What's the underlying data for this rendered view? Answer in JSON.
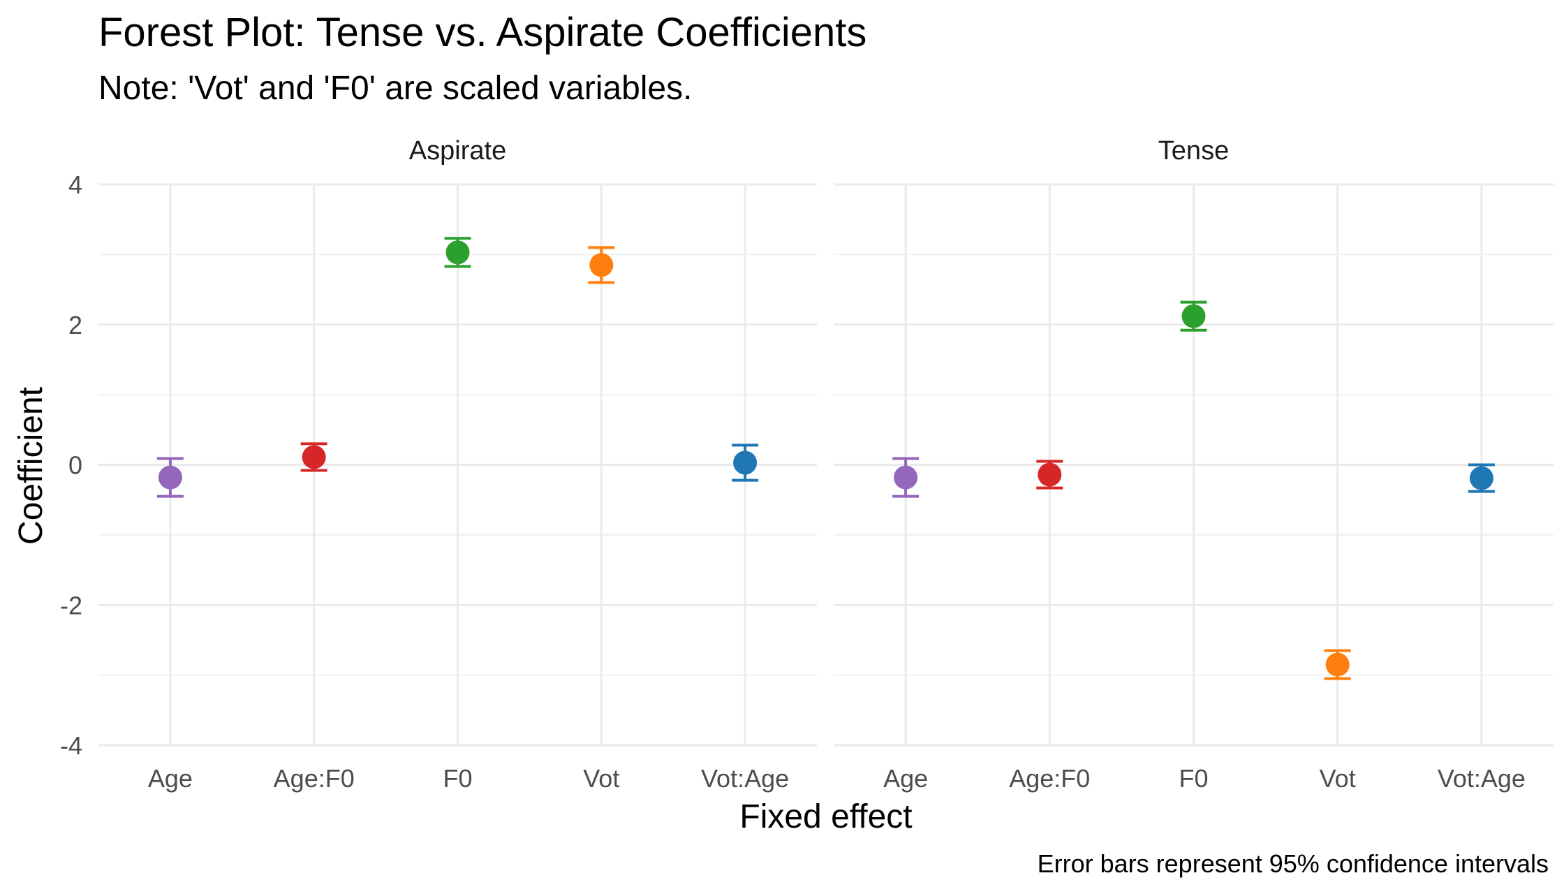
{
  "chart_data": {
    "type": "scatter",
    "title": "Forest Plot: Tense vs. Aspirate Coefficients",
    "subtitle": "Note: 'Vot' and 'F0' are scaled variables.",
    "xlabel": "Fixed effect",
    "ylabel": "Coefficient",
    "caption": "Error bars represent 95% confidence intervals",
    "ylim": [
      -4,
      4
    ],
    "yticks": [
      "4",
      "2",
      "0",
      "-2",
      "-4"
    ],
    "ytick_values": [
      4,
      2,
      0,
      -2,
      -4
    ],
    "grid": true,
    "categories": [
      "Age",
      "Age:F0",
      "F0",
      "Vot",
      "Vot:Age"
    ],
    "colors": {
      "Age": "#9467bd",
      "Age:F0": "#d62728",
      "F0": "#2ca02c",
      "Vot": "#ff7f0e",
      "Vot:Age": "#1f77b4"
    },
    "panels": [
      {
        "name": "Aspirate",
        "points": [
          {
            "x": "Age",
            "estimate": -0.18,
            "lower": -0.45,
            "upper": 0.09
          },
          {
            "x": "Age:F0",
            "estimate": 0.11,
            "lower": -0.08,
            "upper": 0.3
          },
          {
            "x": "F0",
            "estimate": 3.03,
            "lower": 2.83,
            "upper": 3.23
          },
          {
            "x": "Vot",
            "estimate": 2.85,
            "lower": 2.6,
            "upper": 3.1
          },
          {
            "x": "Vot:Age",
            "estimate": 0.03,
            "lower": -0.22,
            "upper": 0.28
          }
        ]
      },
      {
        "name": "Tense",
        "points": [
          {
            "x": "Age",
            "estimate": -0.18,
            "lower": -0.45,
            "upper": 0.09
          },
          {
            "x": "Age:F0",
            "estimate": -0.14,
            "lower": -0.33,
            "upper": 0.05
          },
          {
            "x": "F0",
            "estimate": 2.12,
            "lower": 1.92,
            "upper": 2.32
          },
          {
            "x": "Vot",
            "estimate": -2.85,
            "lower": -3.05,
            "upper": -2.65
          },
          {
            "x": "Vot:Age",
            "estimate": -0.19,
            "lower": -0.38,
            "upper": 0.0
          }
        ]
      }
    ]
  }
}
